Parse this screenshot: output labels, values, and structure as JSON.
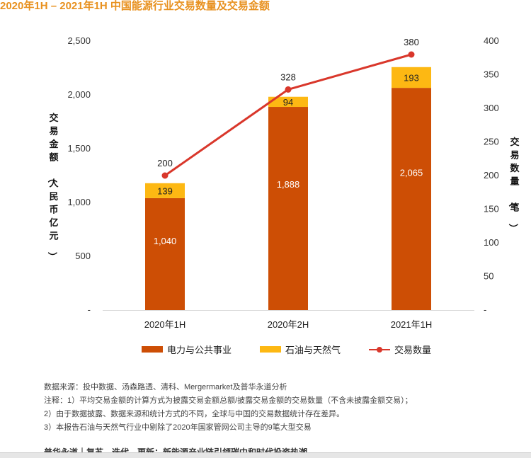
{
  "title": "2020年1H – 2021年1H 中国能源行业交易数量及交易金额",
  "chart_data": {
    "type": "bar",
    "stacked": true,
    "categories": [
      "2020年1H",
      "2020年2H",
      "2021年1H"
    ],
    "series": [
      {
        "name": "电力与公共事业",
        "values": [
          1040,
          1888,
          2065
        ],
        "labels": [
          "1,040",
          "1,888",
          "2,065"
        ],
        "color": "#cd4e05",
        "axis": "left"
      },
      {
        "name": "石油与天然气",
        "values": [
          139,
          94,
          193
        ],
        "labels": [
          "139",
          "94",
          "193"
        ],
        "color": "#fdb813",
        "axis": "left"
      },
      {
        "name": "交易数量",
        "type": "line",
        "values": [
          200,
          328,
          380
        ],
        "labels": [
          "200",
          "328",
          "380"
        ],
        "color": "#d9372b",
        "axis": "right"
      }
    ],
    "ylabel_left": "交易金额（人民币亿元）",
    "ylabel_right": "交易数量（笔）",
    "ylim_left": [
      0,
      2500
    ],
    "ylim_right": [
      0,
      400
    ],
    "yticks_left": [
      "-",
      "500",
      "1,000",
      "1,500",
      "2,000",
      "2,500"
    ],
    "yticks_right": [
      "-",
      "50",
      "100",
      "150",
      "200",
      "250",
      "300",
      "350",
      "400"
    ],
    "legend_position": "bottom",
    "grid": false
  },
  "notes": [
    "数据来源：投中数据、汤森路透、清科、Mergermarket及普华永道分析",
    "注释：1）平均交易金额的计算方式为披露交易金额总额/披露交易金额的交易数量（不含未披露金额交易）；",
    "2）由于数据披露、数据来源和统计方式的不同，全球与中国的交易数据统计存在差异。",
    "3）本报告石油与天然气行业中剔除了2020年国家管网公司主导的9笔大型交易"
  ],
  "footer_text": "普华永道｜复苏、迭代、更新：新能源产业链引领碳中和时代投资热潮"
}
